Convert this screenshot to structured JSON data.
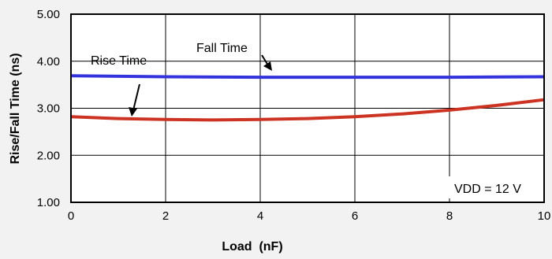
{
  "chart_data": {
    "type": "line",
    "xlabel": "Load  (nF)",
    "ylabel": "Rise/Fall Time (ns)",
    "xlim": [
      0,
      10
    ],
    "ylim": [
      1.0,
      5.0
    ],
    "x_ticks": [
      "0",
      "2",
      "4",
      "6",
      "8",
      "10"
    ],
    "y_ticks": [
      "1.00",
      "2.00",
      "3.00",
      "4.00",
      "5.00"
    ],
    "grid": true,
    "series": [
      {
        "name": "Fall Time",
        "color": "#3333dd",
        "x": [
          0,
          2,
          4,
          6,
          8,
          10
        ],
        "y": [
          3.69,
          3.67,
          3.66,
          3.66,
          3.66,
          3.67
        ]
      },
      {
        "name": "Rise Time",
        "color": "#cc3322",
        "x": [
          0,
          1,
          2,
          3,
          4,
          5,
          6,
          7,
          8,
          9,
          10
        ],
        "y": [
          2.82,
          2.78,
          2.76,
          2.75,
          2.76,
          2.78,
          2.82,
          2.88,
          2.96,
          3.06,
          3.18
        ]
      }
    ],
    "annotations": [
      "Rise Time",
      "Fall Time",
      "VDD = 12 V"
    ]
  }
}
